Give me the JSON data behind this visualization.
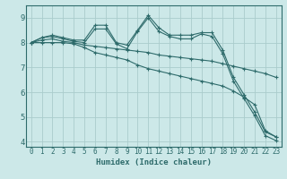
{
  "xlabel": "Humidex (Indice chaleur)",
  "ylabel": "",
  "bg_color": "#cce8e8",
  "line_color": "#2e6b6b",
  "grid_color": "#aacccc",
  "xlim": [
    -0.5,
    23.5
  ],
  "ylim": [
    3.8,
    9.5
  ],
  "xticks": [
    0,
    1,
    2,
    3,
    4,
    5,
    6,
    7,
    8,
    9,
    10,
    11,
    12,
    13,
    14,
    15,
    16,
    17,
    18,
    19,
    20,
    21,
    22,
    23
  ],
  "yticks": [
    4,
    5,
    6,
    7,
    8,
    9
  ],
  "series": [
    [
      8.0,
      8.2,
      8.3,
      8.2,
      8.1,
      8.1,
      8.7,
      8.7,
      8.0,
      7.9,
      8.5,
      9.1,
      8.6,
      8.3,
      8.3,
      8.3,
      8.4,
      8.4,
      7.7,
      6.6,
      5.9,
      5.2,
      4.4,
      4.2
    ],
    [
      8.0,
      8.2,
      8.25,
      8.15,
      8.05,
      8.0,
      8.55,
      8.55,
      7.95,
      7.75,
      8.45,
      9.0,
      8.45,
      8.25,
      8.15,
      8.15,
      8.35,
      8.25,
      7.55,
      6.45,
      5.75,
      5.05,
      4.25,
      4.05
    ],
    [
      8.0,
      8.1,
      8.15,
      8.05,
      8.0,
      7.9,
      7.85,
      7.8,
      7.75,
      7.7,
      7.65,
      7.6,
      7.5,
      7.45,
      7.4,
      7.35,
      7.3,
      7.25,
      7.15,
      7.05,
      6.95,
      6.85,
      6.75,
      6.6
    ],
    [
      8.0,
      8.0,
      8.0,
      8.0,
      7.95,
      7.8,
      7.6,
      7.5,
      7.4,
      7.3,
      7.1,
      6.95,
      6.85,
      6.75,
      6.65,
      6.55,
      6.45,
      6.35,
      6.25,
      6.05,
      5.8,
      5.5,
      4.45,
      4.2
    ]
  ],
  "xlabel_fontsize": 6.5,
  "tick_fontsize_x": 5.5,
  "tick_fontsize_y": 6.5
}
